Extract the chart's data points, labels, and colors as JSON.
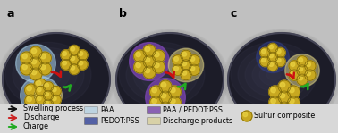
{
  "disk_color": "#282830",
  "disk_edge": "#555555",
  "sulfur_color": "#c8a820",
  "sulfur_highlight": "#e8d040",
  "sulfur_edge": "#7a6508",
  "paa_color": "#a8d0e8",
  "paa_alpha": 0.55,
  "pedot_color": "#334499",
  "pedot_alpha": 0.8,
  "paa_pedot_color": "#7744aa",
  "paa_pedot_alpha": 0.8,
  "discharge_color": "#d8cc80",
  "discharge_alpha": 0.55,
  "fig_bg": "#c0c0c0",
  "label_fontsize": 9,
  "legend_fontsize": 5.8,
  "legend_items_arrow": [
    {
      "color": "#111111",
      "label": "Swelling process"
    },
    {
      "color": "#cc2222",
      "label": "Discharge"
    },
    {
      "color": "#22aa22",
      "label": "Charge"
    }
  ],
  "legend_items_patch1": [
    {
      "color": "#a8d0e8",
      "alpha": 0.55,
      "label": "PAA"
    },
    {
      "color": "#334499",
      "alpha": 0.8,
      "label": "PEDOT:PSS"
    }
  ],
  "legend_items_patch2": [
    {
      "color": "#7744aa",
      "alpha": 0.8,
      "label": "PAA / PEDOT:PSS"
    },
    {
      "color": "#d8cc80",
      "alpha": 0.55,
      "label": "Discharge products"
    }
  ],
  "legend_sulfur_label": "Sulfur composite"
}
